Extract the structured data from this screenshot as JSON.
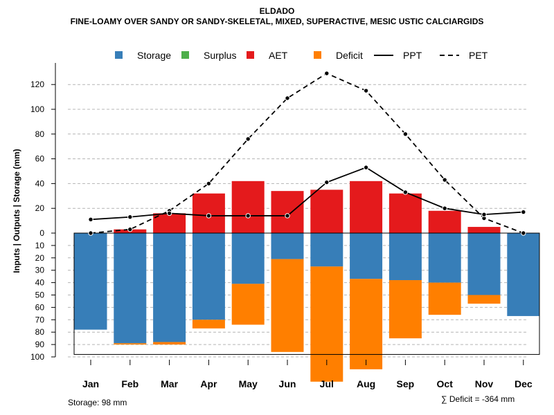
{
  "chart_data": {
    "type": "bar+line",
    "title": "ELDADO",
    "subtitle": "FINE-LOAMY OVER SANDY OR SANDY-SKELETAL, MIXED, SUPERACTIVE, MESIC USTIC CALCIARGIDS",
    "ylabel": "Inputs | Outputs | Storage    (mm)",
    "categories": [
      "Jan",
      "Feb",
      "Mar",
      "Apr",
      "May",
      "Jun",
      "Jul",
      "Aug",
      "Sep",
      "Oct",
      "Nov",
      "Dec"
    ],
    "upper_ylim": [
      0,
      130
    ],
    "upper_ticks": [
      "0",
      "20",
      "40",
      "60",
      "80",
      "100",
      "120"
    ],
    "lower_ylim": [
      0,
      100
    ],
    "lower_ticks": [
      "0",
      "10",
      "20",
      "30",
      "40",
      "50",
      "60",
      "70",
      "80",
      "90",
      "100"
    ],
    "legend": [
      {
        "name": "Storage",
        "kind": "box",
        "color": "#377EB8"
      },
      {
        "name": "Surplus",
        "kind": "box",
        "color": "#4DAF4A"
      },
      {
        "name": "AET",
        "kind": "box",
        "color": "#E41A1C"
      },
      {
        "name": "Deficit",
        "kind": "box",
        "color": "#FF7F00"
      },
      {
        "name": "PPT",
        "kind": "solid"
      },
      {
        "name": "PET",
        "kind": "dashed"
      }
    ],
    "series": [
      {
        "name": "AET",
        "values": [
          0,
          3,
          16,
          32,
          42,
          34,
          35,
          42,
          32,
          18,
          5,
          0
        ]
      },
      {
        "name": "Surplus",
        "values": [
          0,
          0,
          0,
          0,
          0,
          0,
          0,
          0,
          0,
          0,
          0,
          0
        ]
      },
      {
        "name": "Storage",
        "values": [
          78,
          89,
          88,
          70,
          41,
          21,
          27,
          37,
          38,
          40,
          50,
          67
        ]
      },
      {
        "name": "Deficit",
        "values": [
          0,
          1,
          2,
          7,
          33,
          75,
          93,
          73,
          47,
          26,
          7,
          0
        ]
      },
      {
        "name": "PPT",
        "values": [
          11,
          13,
          16,
          14,
          14,
          14,
          41,
          53,
          33,
          20,
          15,
          17
        ]
      },
      {
        "name": "PET",
        "values": [
          0,
          3,
          18,
          40,
          76,
          109,
          129,
          115,
          80,
          43,
          12,
          0
        ]
      }
    ],
    "storage_capacity": 98
  },
  "notes": {
    "storage": "Storage: 98 mm",
    "deficit": "∑ Deficit = -364 mm"
  },
  "colors": {
    "storage": "#377EB8",
    "surplus": "#4DAF4A",
    "aet": "#E41A1C",
    "deficit": "#FF7F00"
  }
}
